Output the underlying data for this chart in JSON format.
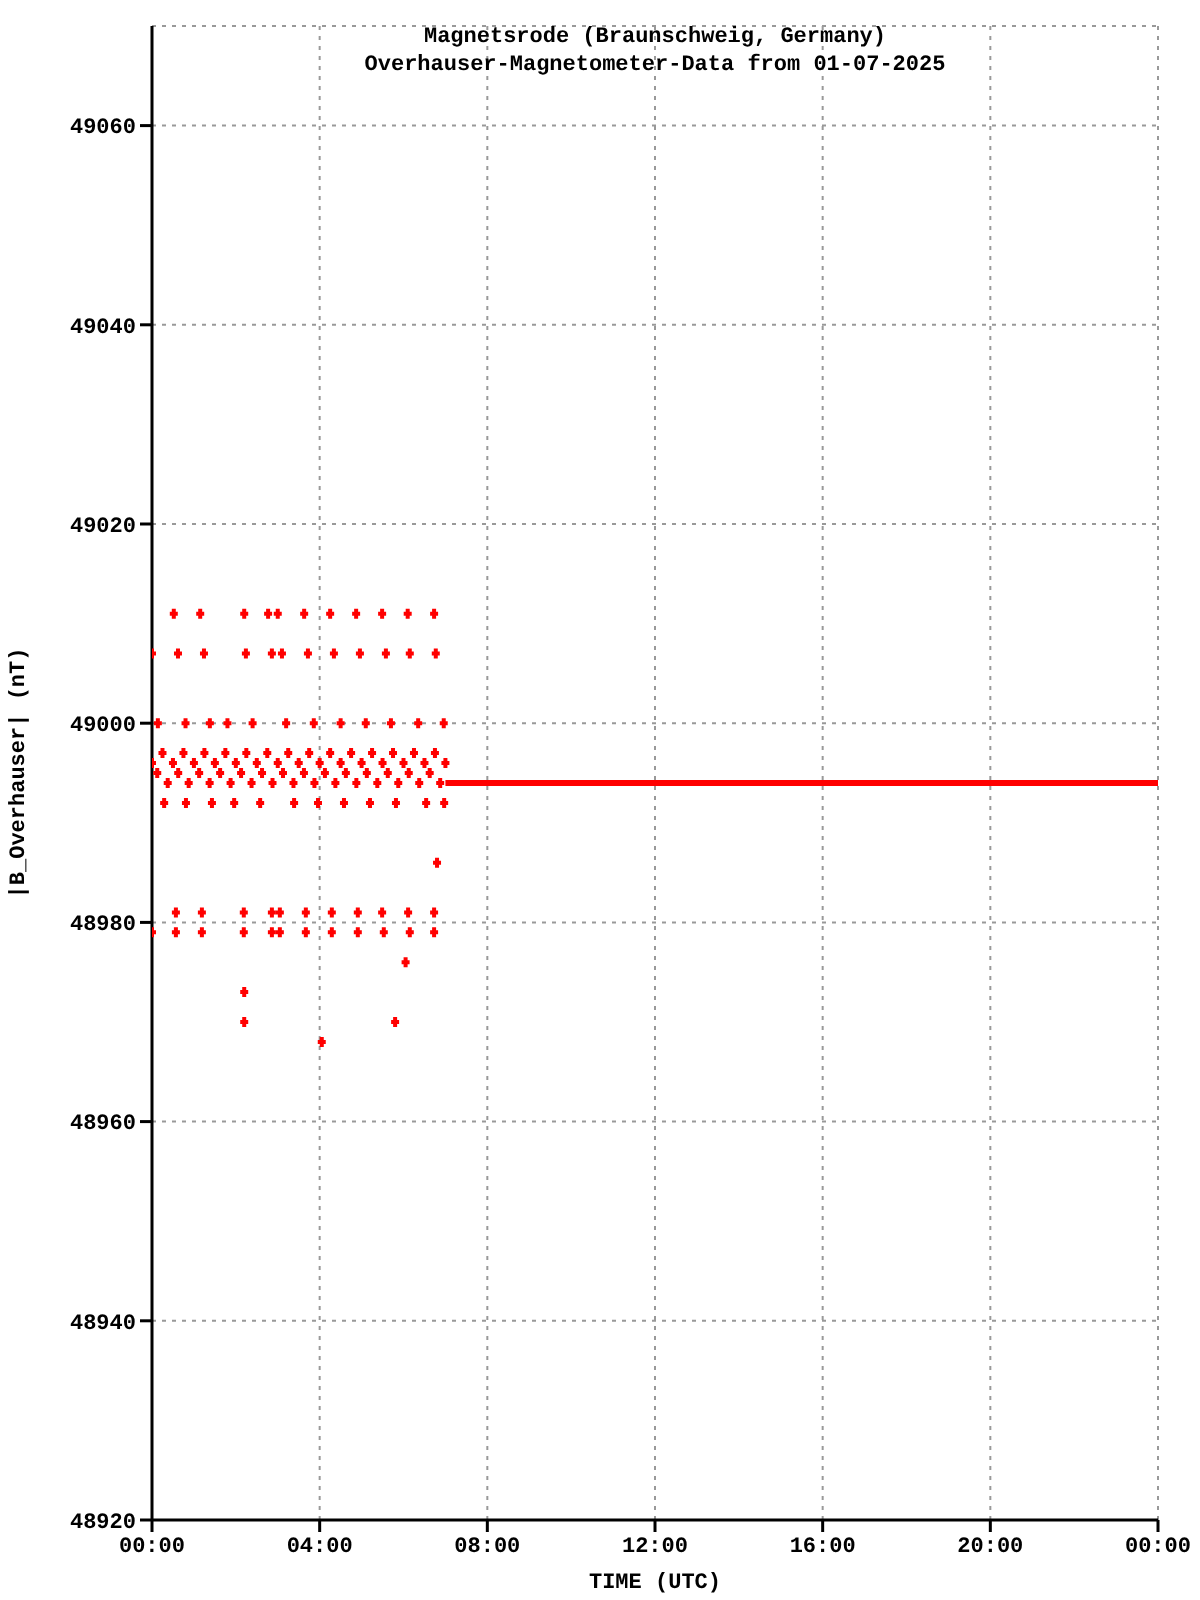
{
  "chart_data": {
    "type": "scatter",
    "title": "Magnetsrode (Braunschweig, Germany)",
    "subtitle": "Overhauser-Magnetometer-Data from 01-07-2025",
    "xlabel": "TIME (UTC)",
    "ylabel": "|B_Overhauser| (nT)",
    "xlim": [
      0,
      24
    ],
    "xticks": [
      {
        "value": 0,
        "label": "00:00"
      },
      {
        "value": 4,
        "label": "04:00"
      },
      {
        "value": 8,
        "label": "08:00"
      },
      {
        "value": 12,
        "label": "12:00"
      },
      {
        "value": 16,
        "label": "16:00"
      },
      {
        "value": 20,
        "label": "20:00"
      },
      {
        "value": 24,
        "label": "00:00"
      }
    ],
    "ylim": [
      48920,
      49070
    ],
    "yticks": [
      48920,
      48940,
      48960,
      48980,
      49000,
      49020,
      49040,
      49060
    ],
    "grid": true,
    "marker": "cross",
    "series": [
      {
        "color": "#ff0000",
        "x": [
          0.52,
          1.15,
          2.2,
          2.77,
          3.0,
          3.63,
          4.25,
          4.87,
          5.49,
          6.1,
          6.73,
          0.0,
          0.62,
          1.24,
          2.24,
          2.86,
          3.1,
          3.72,
          4.34,
          4.96,
          5.58,
          6.15,
          6.77,
          0.14,
          0.8,
          1.38,
          1.8,
          2.4,
          3.2,
          3.86,
          4.5,
          5.1,
          5.7,
          6.35,
          6.96,
          0.29,
          0.81,
          1.43,
          1.96,
          2.58,
          3.39,
          3.96,
          4.58,
          5.2,
          5.82,
          6.54,
          6.97,
          0.57,
          1.19,
          2.19,
          2.86,
          3.05,
          3.67,
          4.29,
          4.91,
          5.49,
          6.11,
          6.73,
          0.0,
          0.57,
          1.19,
          2.19,
          2.86,
          3.05,
          3.67,
          4.29,
          4.91,
          5.53,
          6.15,
          6.73,
          2.2,
          2.2,
          4.05,
          5.8,
          6.05,
          6.8,
          0,
          0.25,
          0.5,
          0.75,
          1,
          1.25,
          1.5,
          1.75,
          2,
          2.25,
          2.5,
          2.75,
          3,
          3.25,
          3.5,
          3.75,
          4,
          4.25,
          4.5,
          4.75,
          5,
          5.25,
          5.5,
          5.75,
          6,
          6.25,
          6.5,
          6.75,
          7,
          0.125,
          0.375,
          0.625,
          0.875,
          1.125,
          1.375,
          1.625,
          1.875,
          2.125,
          2.375,
          2.625,
          2.875,
          3.125,
          3.375,
          3.625,
          3.875,
          4.125,
          4.375,
          4.625,
          4.875,
          5.125,
          5.375,
          5.625,
          5.875,
          6.125,
          6.375,
          6.625,
          6.875
        ],
        "values": [
          49011,
          49011,
          49011,
          49011,
          49011,
          49011,
          49011,
          49011,
          49011,
          49011,
          49011,
          49007,
          49007,
          49007,
          49007,
          49007,
          49007,
          49007,
          49007,
          49007,
          49007,
          49007,
          49007,
          49000,
          49000,
          49000,
          49000,
          49000,
          49000,
          49000,
          49000,
          49000,
          49000,
          49000,
          49000,
          48992,
          48992,
          48992,
          48992,
          48992,
          48992,
          48992,
          48992,
          48992,
          48992,
          48992,
          48992,
          48981,
          48981,
          48981,
          48981,
          48981,
          48981,
          48981,
          48981,
          48981,
          48981,
          48981,
          48979,
          48979,
          48979,
          48979,
          48979,
          48979,
          48979,
          48979,
          48979,
          48979,
          48979,
          48979,
          48973,
          48970,
          48968,
          48970,
          48976,
          48986,
          48996,
          48997,
          48996,
          48997,
          48996,
          48997,
          48996,
          48997,
          48996,
          48997,
          48996,
          48997,
          48996,
          48997,
          48996,
          48997,
          48996,
          48997,
          48996,
          48997,
          48996,
          48997,
          48996,
          48997,
          48996,
          48997,
          48996,
          48997,
          48996,
          48995,
          48994,
          48995,
          48994,
          48995,
          48994,
          48995,
          48994,
          48995,
          48994,
          48995,
          48994,
          48995,
          48994,
          48995,
          48994,
          48995,
          48994,
          48995,
          48994,
          48995,
          48994,
          48995,
          48994,
          48995,
          48994,
          48995,
          48994
        ]
      },
      {
        "type": "line",
        "marker": "none",
        "color": "#ff0000",
        "x": [
          7,
          24
        ],
        "values": [
          48994,
          48994
        ]
      }
    ]
  }
}
